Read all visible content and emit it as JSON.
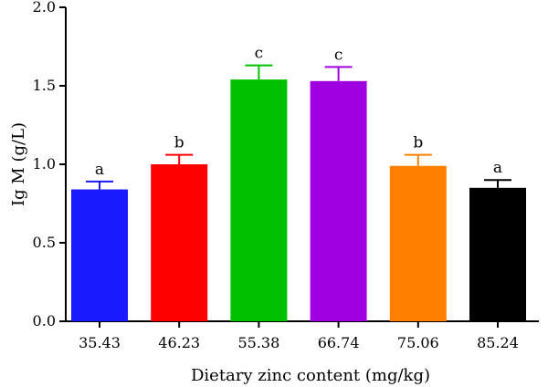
{
  "chart_data": {
    "type": "bar",
    "xlabel": "Dietary zinc content (mg/kg)",
    "ylabel": "Ig M (g/L)",
    "ylim": [
      0,
      2.0
    ],
    "yticks": [
      "0.0",
      "0.5",
      "1.0",
      "1.5",
      "2.0"
    ],
    "grid": false,
    "categories": [
      "35.43",
      "46.23",
      "55.38",
      "66.74",
      "75.06",
      "85.24"
    ],
    "values": [
      0.84,
      1.0,
      1.54,
      1.53,
      0.99,
      0.85
    ],
    "errors": [
      0.05,
      0.06,
      0.09,
      0.09,
      0.07,
      0.05
    ],
    "significance_letters": [
      "a",
      "b",
      "c",
      "c",
      "b",
      "a"
    ],
    "colors": [
      "#1a1aff",
      "#ff0000",
      "#00c000",
      "#a000e0",
      "#ff8000",
      "#000000"
    ]
  }
}
